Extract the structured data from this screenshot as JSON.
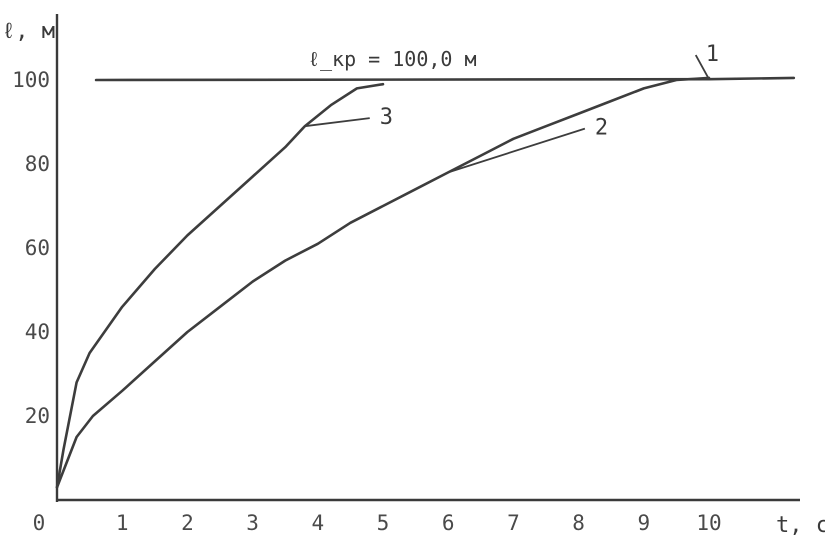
{
  "chart_data": {
    "type": "line",
    "xlabel": "t, су",
    "ylabel": "ℓ, м",
    "xlim": [
      0,
      11.3
    ],
    "ylim": [
      0,
      115
    ],
    "x_ticks": [
      "0",
      "1",
      "2",
      "3",
      "4",
      "5",
      "6",
      "7",
      "8",
      "9",
      "10"
    ],
    "y_ticks": [
      "20",
      "40",
      "60",
      "80",
      "100"
    ],
    "annotation": "ℓ_кр = 100,0 м",
    "grid": false,
    "legend": "none",
    "series": [
      {
        "name": "1",
        "x": [
          0.6,
          10.0,
          11.3
        ],
        "y": [
          100,
          100.2,
          100.5
        ]
      },
      {
        "name": "2",
        "x": [
          0.0,
          0.1,
          0.3,
          0.55,
          1.0,
          1.5,
          2.0,
          2.5,
          3.0,
          3.5,
          4.0,
          4.5,
          5.0,
          5.5,
          6.0,
          6.5,
          7.0,
          7.5,
          8.0,
          8.5,
          9.0,
          9.5,
          10.0
        ],
        "y": [
          3,
          7,
          15,
          20,
          26,
          33,
          40,
          46,
          52,
          57,
          61,
          66,
          70,
          74,
          78,
          82,
          86,
          89,
          92,
          95,
          98,
          100,
          100.5
        ]
      },
      {
        "name": "3",
        "x": [
          0.0,
          0.1,
          0.3,
          0.5,
          1.0,
          1.5,
          2.0,
          2.5,
          3.0,
          3.5,
          3.8,
          4.2,
          4.6,
          5.0
        ],
        "y": [
          3,
          12,
          28,
          35,
          46,
          55,
          63,
          70,
          77,
          84,
          89,
          94,
          98,
          99
        ]
      }
    ],
    "labels": [
      {
        "series": "1",
        "text": "1",
        "x": 9.95,
        "y": 104.5
      },
      {
        "series": "2",
        "text": "2",
        "x": 8.25,
        "y": 87
      },
      {
        "series": "3",
        "text": "3",
        "x": 4.95,
        "y": 89.5
      }
    ],
    "colors": {
      "ink": "#3d3d3d",
      "background": "#ffffff"
    }
  }
}
